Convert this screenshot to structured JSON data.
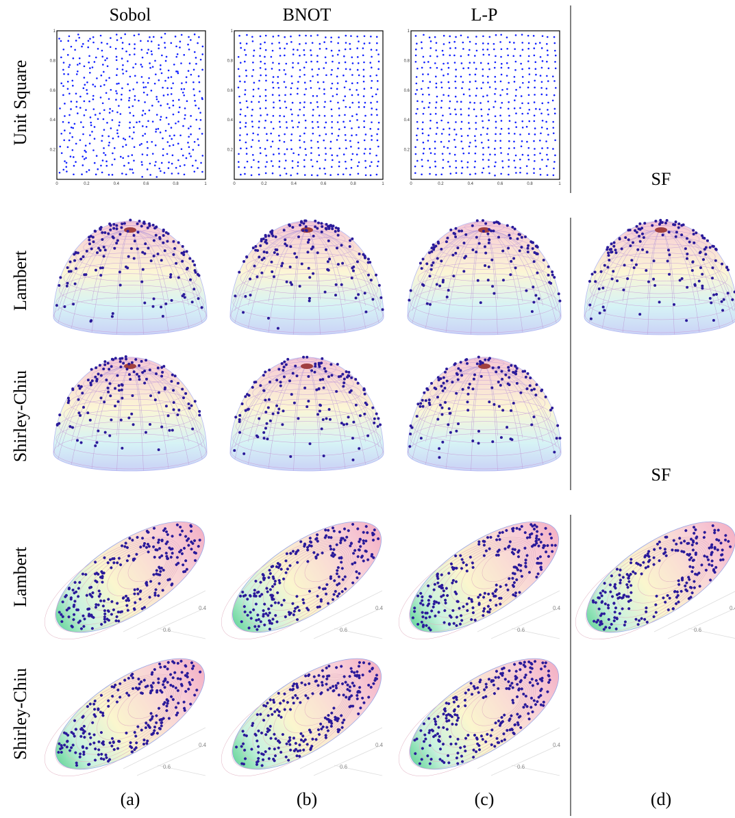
{
  "column_headers": [
    "Sobol",
    "BNOT",
    "L-P"
  ],
  "row_labels": {
    "unit_square": "Unit Square",
    "hemisphere": [
      "Lambert",
      "Shirley-Chiu"
    ],
    "ellipsoid": [
      "Lambert",
      "Shirley-Chiu"
    ]
  },
  "sf_labels": [
    "SF",
    "SF"
  ],
  "subfigure_labels": [
    "(a)",
    "(b)",
    "(c)",
    "(d)"
  ],
  "unit_square_axes": {
    "x_ticks": [
      "0",
      "0.2",
      "0.4",
      "0.6",
      "0.8",
      "1"
    ],
    "y_ticks": [
      "0.2",
      "0.4",
      "0.6",
      "0.8",
      "1"
    ]
  },
  "ellipsoid_axis_ticks": [
    "0.4",
    "0.6"
  ]
}
